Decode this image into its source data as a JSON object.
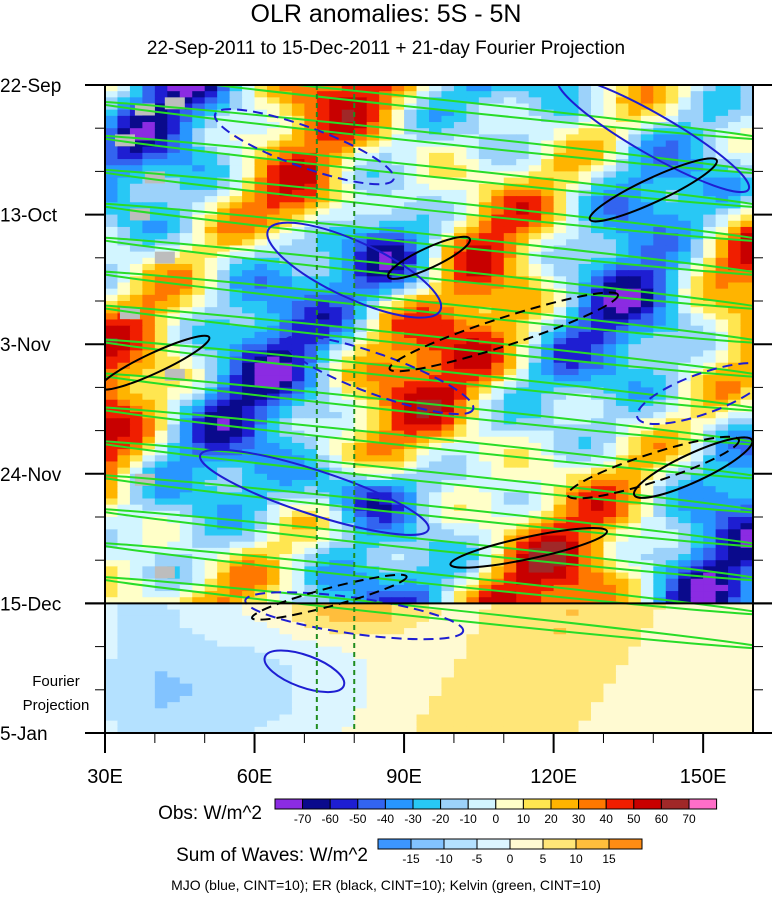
{
  "chart_data": {
    "type": "heatmap",
    "title": "OLR anomalies: 5S - 5N",
    "subtitle": "22-Sep-2011 to 15-Dec-2011 + 21-day Fourier Projection",
    "x_ticks": [
      "30E",
      "60E",
      "90E",
      "120E",
      "150E"
    ],
    "x_tick_values": [
      30,
      60,
      90,
      120,
      150
    ],
    "xlim": [
      30,
      160
    ],
    "y_ticks": [
      "22-Sep",
      "13-Oct",
      "3-Nov",
      "24-Nov",
      "15-Dec",
      "5-Jan"
    ],
    "y_tick_days": [
      0,
      21,
      42,
      63,
      84,
      105
    ],
    "ylim_days": [
      0,
      105
    ],
    "projection_label_line1": "Fourier",
    "projection_label_line2": "Projection",
    "projection_start_day": 84,
    "vertical_reference_lines_lon": [
      72.5,
      80
    ],
    "obs_colorbar": {
      "label": "Obs: W/m^2",
      "levels": [
        "-70",
        "-60",
        "-50",
        "-40",
        "-30",
        "-20",
        "-10",
        "0",
        "10",
        "20",
        "30",
        "40",
        "50",
        "60",
        "70"
      ],
      "colors": [
        "#8b2be2",
        "#0a0a8c",
        "#1e1ed2",
        "#3264f0",
        "#2896ff",
        "#28c8f5",
        "#9cd2fa",
        "#d2f5ff",
        "#ffffc8",
        "#ffe650",
        "#ffb400",
        "#ff7800",
        "#f01e00",
        "#c80000",
        "#a02828",
        "#ff6ec8"
      ]
    },
    "waves_colorbar": {
      "label": "Sum of Waves: W/m^2",
      "levels": [
        "-15",
        "-10",
        "-5",
        "0",
        "5",
        "10",
        "15"
      ],
      "colors": [
        "#3c96ff",
        "#82c3ff",
        "#b4e1ff",
        "#dcf5ff",
        "#fffad2",
        "#ffe678",
        "#ffbe3c",
        "#ff8c14"
      ]
    },
    "contours": "MJO (blue, CINT=10); ER (black, CINT=10); Kelvin (green, CINT=10)",
    "series_colors": {
      "mjo": "#1e1ed2",
      "er": "#000000",
      "kelvin": "#28dc28"
    }
  }
}
